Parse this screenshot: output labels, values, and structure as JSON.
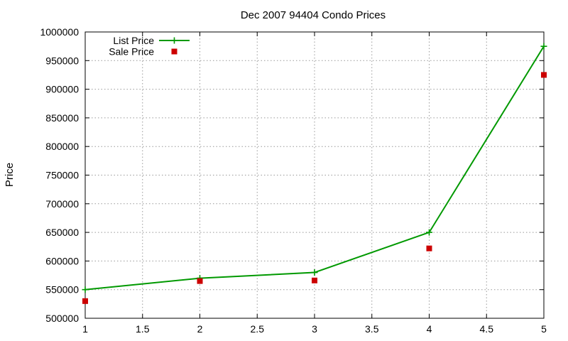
{
  "chart_data": {
    "type": "line",
    "title": "Dec 2007 94404 Condo Prices",
    "xlabel": "",
    "ylabel": "Price",
    "xlim": [
      1,
      5
    ],
    "ylim": [
      500000,
      1000000
    ],
    "xticks": [
      1,
      1.5,
      2,
      2.5,
      3,
      3.5,
      4,
      4.5,
      5
    ],
    "xtick_labels": [
      "1",
      "1.5",
      "2",
      "2.5",
      "3",
      "3.5",
      "4",
      "4.5",
      "5"
    ],
    "yticks": [
      500000,
      550000,
      600000,
      650000,
      700000,
      750000,
      800000,
      850000,
      900000,
      950000,
      1000000
    ],
    "ytick_labels": [
      "500000",
      "550000",
      "600000",
      "650000",
      "700000",
      "750000",
      "800000",
      "850000",
      "900000",
      "950000",
      "1000000"
    ],
    "grid": true,
    "legend_position": "top-left",
    "series": [
      {
        "name": "List Price",
        "style": "line-with-plus-markers",
        "color": "#009900",
        "x": [
          1,
          2,
          3,
          4,
          5
        ],
        "y": [
          550000,
          570000,
          580000,
          650000,
          975000
        ]
      },
      {
        "name": "Sale Price",
        "style": "square-markers",
        "color": "#cc0000",
        "x": [
          1,
          2,
          3,
          4,
          5
        ],
        "y": [
          530000,
          565000,
          566000,
          622000,
          925000
        ]
      }
    ]
  }
}
